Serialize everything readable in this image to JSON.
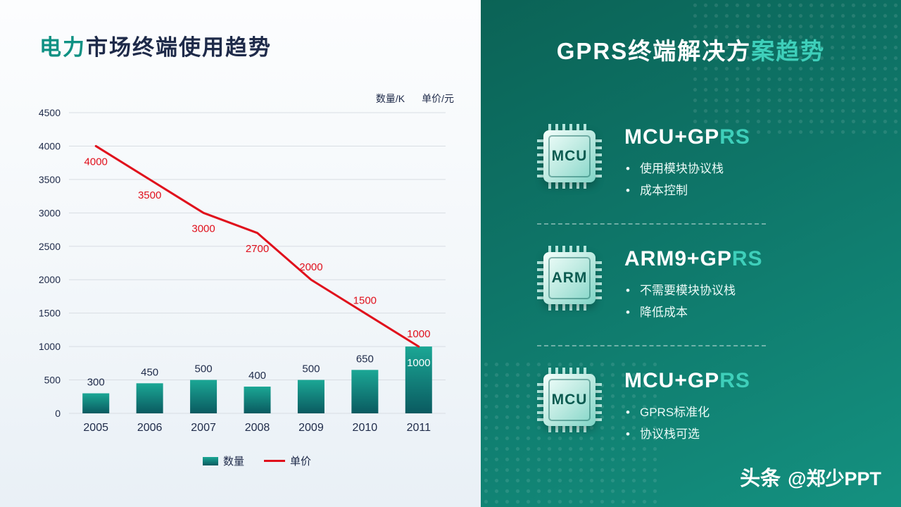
{
  "left": {
    "title_accent": "电力",
    "title_rest": "市场终端使用趋势",
    "unit_quantity": "数量/K",
    "unit_price": "单价/元",
    "legend_bar": "数量",
    "legend_line": "单价"
  },
  "chart_data": {
    "type": "bar+line",
    "categories": [
      "2005",
      "2006",
      "2007",
      "2008",
      "2009",
      "2010",
      "2011"
    ],
    "series": [
      {
        "name": "数量",
        "type": "bar",
        "values": [
          300,
          450,
          500,
          400,
          500,
          650,
          1000
        ]
      },
      {
        "name": "单价",
        "type": "line",
        "values": [
          4000,
          3500,
          3000,
          2700,
          2000,
          1500,
          1000
        ]
      }
    ],
    "ylim": [
      0,
      4500
    ],
    "ytick_interval": 500,
    "grid": true,
    "legend_position": "bottom"
  },
  "colors": {
    "accent_teal": "#0e9183",
    "navy": "#1e2a49",
    "red": "#e0101c",
    "grid": "#d8dde3",
    "bar_top": "#1ba795",
    "bar_bottom": "#0a5a60",
    "bar_label_inside": "#ffffff",
    "right_accent": "#3ecfba"
  },
  "right": {
    "title_main": "GPRS终端解决方",
    "title_accent": "案趋势",
    "items": [
      {
        "chip": "MCU",
        "title_main": "MCU+GP",
        "title_accent": "RS",
        "bullets": [
          "使用模块协议栈",
          "成本控制"
        ]
      },
      {
        "chip": "ARM",
        "title_main": "ARM9+GP",
        "title_accent": "RS",
        "bullets": [
          "不需要模块协议栈",
          "降低成本"
        ]
      },
      {
        "chip": "MCU",
        "title_main": "MCU+GP",
        "title_accent": "RS",
        "bullets": [
          "GPRS标准化",
          "协议栈可选"
        ]
      }
    ],
    "footer_brand": "头条",
    "footer_handle": "@郑少PPT"
  }
}
